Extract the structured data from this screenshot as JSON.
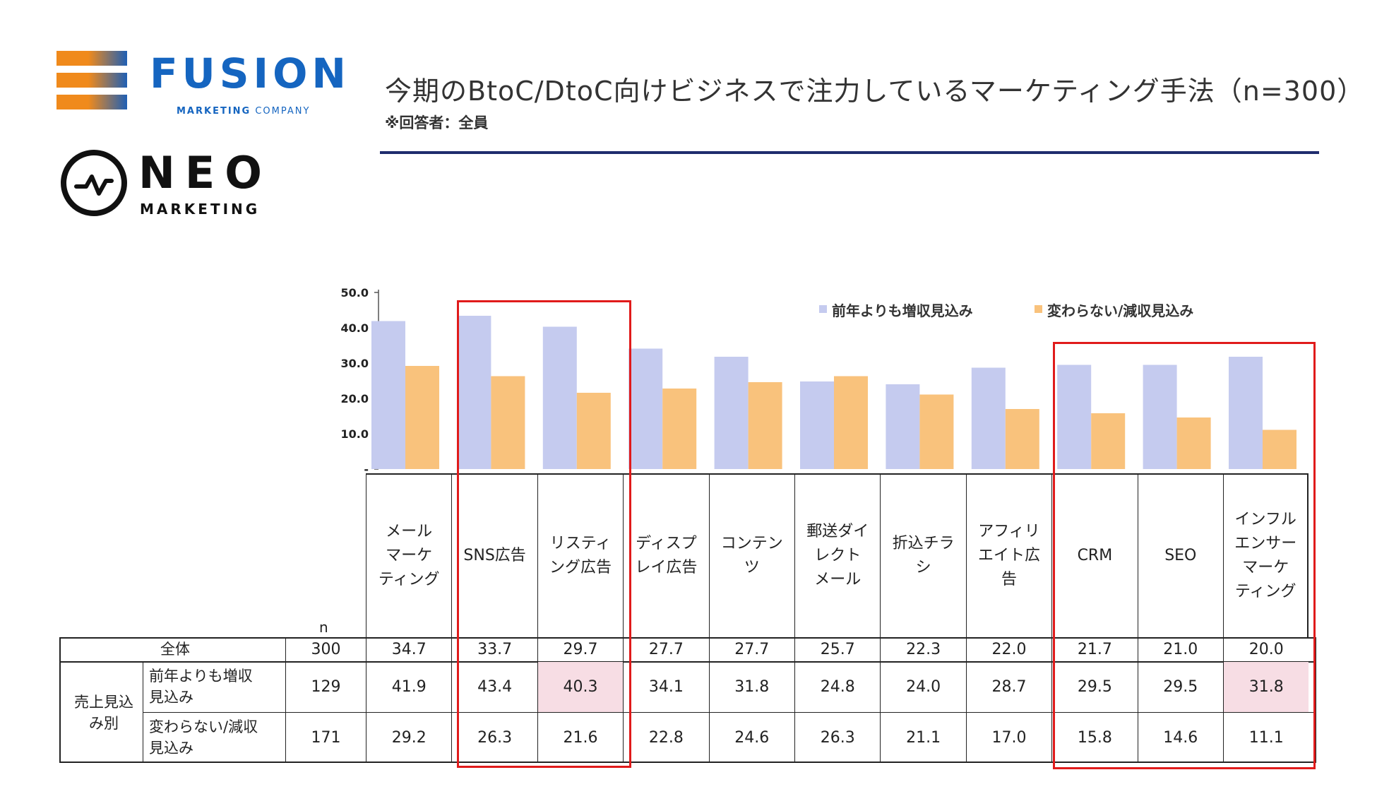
{
  "logos": {
    "fusion_name": "FUSION",
    "fusion_sub_bold": "MARKETING",
    "fusion_sub": "COMPANY",
    "neo_name": "NEO",
    "neo_sub": "MARKETING"
  },
  "header": {
    "title": "今期のBtoC/DtoC向けビジネスで注力しているマーケティング手法（n=300）",
    "subtitle": "※回答者：全員"
  },
  "colors": {
    "increase": "#c5cbef",
    "flat_decrease": "#f9c27c",
    "highlight": "#f7dde4",
    "red_box": "#e01b1b",
    "rule": "#1f2d6e"
  },
  "chart_data": {
    "type": "bar",
    "categories": [
      "メール\nマーケ\nティング",
      "SNS広告",
      "リスティ\nング広告",
      "ディスプ\nレイ広告",
      "コンテン\nツ",
      "郵送ダイ\nレクト\nメール",
      "折込チラ\nシ",
      "アフィリ\nエイト広\n告",
      "CRM",
      "SEO",
      "インフル\nエンサー\nマーケ\nティング"
    ],
    "series": [
      {
        "name": "前年よりも増収見込み",
        "values": [
          41.9,
          43.4,
          40.3,
          34.1,
          31.8,
          24.8,
          24.0,
          28.7,
          29.5,
          29.5,
          31.8
        ]
      },
      {
        "name": "変わらない/減収見込み",
        "values": [
          29.2,
          26.3,
          21.6,
          22.8,
          24.6,
          26.3,
          21.1,
          17.0,
          15.8,
          14.6,
          11.1
        ]
      }
    ],
    "y_ticks": [
      "50.0",
      "40.0",
      "30.0",
      "20.0",
      "10.0",
      "-"
    ],
    "ylim": [
      0,
      50
    ],
    "legend_position": "top-right"
  },
  "table": {
    "n_header": "n",
    "group_label": "売上見込\nみ別",
    "rows": [
      {
        "label": "全体",
        "n": "300",
        "values": [
          "34.7",
          "33.7",
          "29.7",
          "27.7",
          "27.7",
          "25.7",
          "22.3",
          "22.0",
          "21.7",
          "21.0",
          "20.0"
        ]
      },
      {
        "label": "前年よりも増収\n見込み",
        "n": "129",
        "values": [
          "41.9",
          "43.4",
          "40.3",
          "34.1",
          "31.8",
          "24.8",
          "24.0",
          "28.7",
          "29.5",
          "29.5",
          "31.8"
        ]
      },
      {
        "label": "変わらない/減収\n見込み",
        "n": "171",
        "values": [
          "29.2",
          "26.3",
          "21.6",
          "22.8",
          "24.6",
          "26.3",
          "21.1",
          "17.0",
          "15.8",
          "14.6",
          "11.1"
        ]
      }
    ]
  }
}
